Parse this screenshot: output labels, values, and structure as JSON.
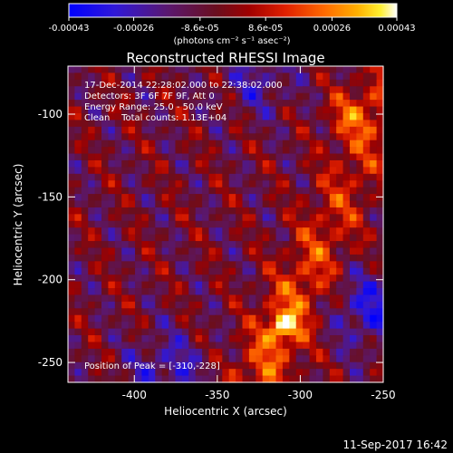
{
  "chart_data": {
    "type": "heatmap",
    "title": "Reconstructed RHESSI Image",
    "xlabel": "Heliocentric X (arcsec)",
    "ylabel": "Heliocentric Y (arcsec)",
    "xlim": [
      -440,
      -250
    ],
    "ylim": [
      -262,
      -71
    ],
    "xticks": [
      "-400",
      "-350",
      "-300",
      "-250"
    ],
    "xtick_values": [
      -400,
      -350,
      -300,
      -250
    ],
    "yticks": [
      "-100",
      "-150",
      "-200",
      "-250"
    ],
    "ytick_values": [
      -100,
      -150,
      -200,
      -250
    ],
    "colorbar": {
      "range": [
        -0.00043,
        0.00043
      ],
      "tick_labels": [
        "-0.00043",
        "-0.00026",
        "-8.6e-05",
        "8.6e-05",
        "0.00026",
        "0.00043"
      ],
      "tick_values": [
        -0.00043,
        -0.00026,
        -8.6e-05,
        8.6e-05,
        0.00026,
        0.00043
      ],
      "unit_label": "(photons cm⁻² s⁻¹ asec⁻²)",
      "colormap": "blue-purple-red-yellow-white"
    },
    "annotations": [
      "17-Dec-2014 22:28:02.000 to 22:38:02.000",
      "Detectors: 3F 6F 7F 9F, Att 0",
      "Energy Range: 25.0 - 50.0 keV",
      "Clean    Total counts: 1.13E+04"
    ],
    "peak_label": "Position of Peak = [-310,-228]",
    "peak": {
      "x": -310,
      "y": -228
    },
    "grid_cols": 47,
    "grid_rows": 47
  },
  "footer": {
    "timestamp": "11-Sep-2017 16:42"
  },
  "colors": {
    "background": "#000000",
    "text": "#ffffff"
  }
}
